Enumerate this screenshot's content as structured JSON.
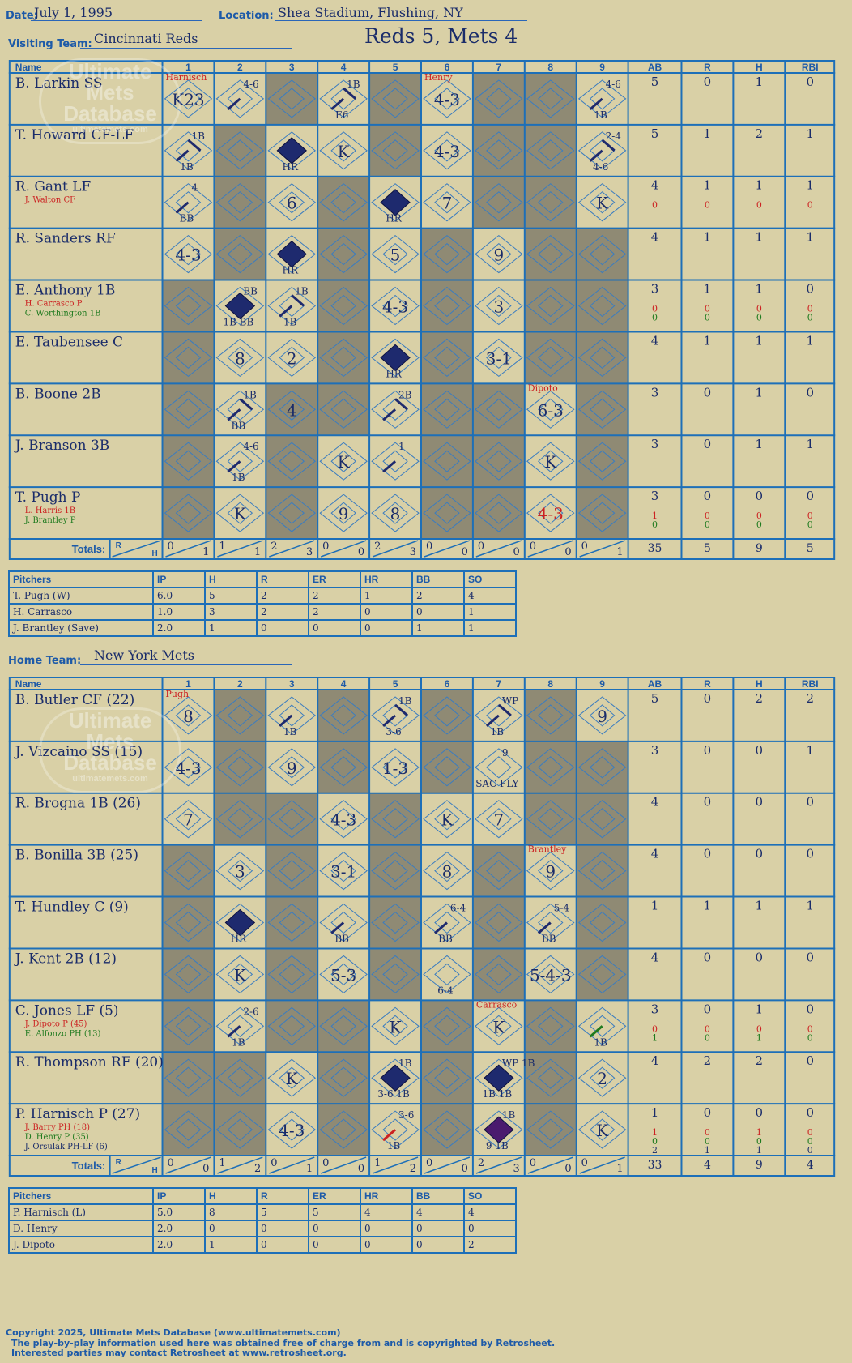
{
  "header": {
    "date_label": "Date:",
    "date": "July 1, 1995",
    "location_label": "Location:",
    "location": "Shea Stadium, Flushing, NY",
    "title": "Reds 5, Mets 4",
    "visiting_label": "Visiting Team:",
    "visiting_team": "Cincinnati Reds",
    "home_label": "Home Team:",
    "home_team": "New York Mets"
  },
  "columns": {
    "name": "Name",
    "innings": [
      "1",
      "2",
      "3",
      "4",
      "5",
      "6",
      "7",
      "8",
      "9"
    ],
    "stats": [
      "AB",
      "R",
      "H",
      "RBI"
    ],
    "totals_label": "Totals:",
    "totals_r": "R",
    "totals_h": "H"
  },
  "watermark": {
    "line1": "Ultimate",
    "line2": "Mets",
    "line3": "Database",
    "url": "ultimatemets.com"
  },
  "colors": {
    "background": "#d9d0a6",
    "grid": "#1d6fb8",
    "ink": "#1a2c6a",
    "shade": "#8f8a74",
    "sub_red": "#cc2222",
    "sub_green": "#1e7a1e",
    "run_navy": "#1e2a6e",
    "run_purple": "#4a1a6e"
  },
  "visitors": {
    "rows": [
      {
        "name": "B. Larkin SS",
        "subs": [],
        "stats": [
          [
            "5",
            "0",
            "1",
            "0"
          ]
        ],
        "cells": {
          "1": {
            "t": "K23",
            "note": "Harnisch"
          },
          "2": {
            "t": "4-6",
            "bases": 1
          },
          "4": {
            "t": "1B",
            "b2": "E6",
            "bases": 2
          },
          "6": {
            "t": "4-3",
            "note": "Henry"
          },
          "9": {
            "t": "4-6",
            "b2": "1B",
            "bases": 1
          }
        }
      },
      {
        "name": "T. Howard CF-LF",
        "subs": [],
        "stats": [
          [
            "5",
            "1",
            "2",
            "1"
          ]
        ],
        "cells": {
          "1": {
            "t": "1B",
            "b2": "1B",
            "bases": 2
          },
          "3": {
            "run": 1,
            "b2": "HR"
          },
          "4": {
            "t": "K"
          },
          "6": {
            "t": "4-3"
          },
          "9": {
            "t": "2-4",
            "b2": "4-6",
            "bases": 2
          }
        }
      },
      {
        "name": "R. Gant LF",
        "subs": [
          {
            "n": "J. Walton CF",
            "c": "r"
          }
        ],
        "stats": [
          [
            "4",
            "1",
            "1",
            "1"
          ],
          [
            "0",
            "0",
            "0",
            "0"
          ]
        ],
        "cells": {
          "1": {
            "t": "4",
            "b2": "BB",
            "bases": 1
          },
          "3": {
            "t": "6"
          },
          "5": {
            "run": 1,
            "b2": "HR"
          },
          "6": {
            "t": "7"
          },
          "9": {
            "t": "K"
          }
        }
      },
      {
        "name": "R. Sanders RF",
        "subs": [],
        "stats": [
          [
            "4",
            "1",
            "1",
            "1"
          ]
        ],
        "cells": {
          "1": {
            "t": "4-3"
          },
          "3": {
            "run": 1,
            "b2": "HR"
          },
          "5": {
            "t": "5"
          },
          "7": {
            "t": "9"
          }
        }
      },
      {
        "name": "E. Anthony 1B",
        "subs": [
          {
            "n": "H. Carrasco P",
            "c": "r"
          },
          {
            "n": "C. Worthington 1B",
            "c": "g"
          }
        ],
        "stats": [
          [
            "3",
            "1",
            "1",
            "0"
          ],
          [
            "0",
            "0",
            "0",
            "0"
          ],
          [
            "0",
            "0",
            "0",
            "0"
          ]
        ],
        "cells": {
          "2": {
            "run": 1,
            "t": "BB",
            "b2": "1B BB"
          },
          "3": {
            "t": "1B",
            "b2": "1B",
            "bases": 2
          },
          "5": {
            "t": "4-3"
          },
          "7": {
            "t": "3"
          }
        }
      },
      {
        "name": "E. Taubensee C",
        "subs": [],
        "stats": [
          [
            "4",
            "1",
            "1",
            "1"
          ]
        ],
        "cells": {
          "2": {
            "t": "8"
          },
          "3": {
            "t": "2"
          },
          "5": {
            "run": 1,
            "b2": "HR"
          },
          "7": {
            "t": "3-1"
          }
        }
      },
      {
        "name": "B. Boone 2B",
        "subs": [],
        "stats": [
          [
            "3",
            "0",
            "1",
            "0"
          ]
        ],
        "cells": {
          "2": {
            "t": "1B",
            "b2": "BB",
            "bases": 2
          },
          "3": {
            "t": "4"
          },
          "5": {
            "t": "2B",
            "bases": 2
          },
          "8": {
            "t": "6-3",
            "note": "Dipoto"
          }
        }
      },
      {
        "name": "J. Branson 3B",
        "subs": [],
        "stats": [
          [
            "3",
            "0",
            "1",
            "1"
          ]
        ],
        "cells": {
          "2": {
            "t": "4-6",
            "b2": "1B",
            "bases": 1
          },
          "4": {
            "t": "K"
          },
          "5": {
            "t": "1",
            "bases": 1
          },
          "8": {
            "t": "K"
          }
        }
      },
      {
        "name": "T. Pugh P",
        "subs": [
          {
            "n": "L. Harris 1B",
            "c": "r"
          },
          {
            "n": "J. Brantley P",
            "c": "g"
          }
        ],
        "stats": [
          [
            "3",
            "0",
            "0",
            "0"
          ],
          [
            "1",
            "0",
            "0",
            "0"
          ],
          [
            "0",
            "0",
            "0",
            "0"
          ]
        ],
        "cells": {
          "2": {
            "t": "K"
          },
          "4": {
            "t": "9"
          },
          "5": {
            "t": "8"
          },
          "8": {
            "t": "4-3",
            "red": 1
          }
        }
      }
    ],
    "shade": [
      [
        false,
        false,
        true,
        false,
        true,
        false,
        true,
        true,
        false
      ],
      [
        false,
        true,
        false,
        false,
        true,
        false,
        true,
        true,
        false
      ],
      [
        false,
        true,
        false,
        true,
        false,
        false,
        true,
        true,
        false
      ],
      [
        false,
        true,
        false,
        true,
        false,
        true,
        false,
        true,
        true
      ],
      [
        true,
        false,
        false,
        true,
        false,
        true,
        false,
        true,
        true
      ],
      [
        true,
        false,
        false,
        true,
        false,
        true,
        false,
        true,
        true
      ],
      [
        true,
        false,
        true,
        true,
        false,
        true,
        true,
        false,
        true
      ],
      [
        true,
        false,
        true,
        false,
        false,
        true,
        true,
        false,
        true
      ],
      [
        true,
        false,
        true,
        false,
        false,
        true,
        true,
        false,
        true
      ]
    ],
    "totals": [
      [
        "0",
        "1"
      ],
      [
        "1",
        "1"
      ],
      [
        "2",
        "3"
      ],
      [
        "0",
        "0"
      ],
      [
        "2",
        "3"
      ],
      [
        "0",
        "0"
      ],
      [
        "0",
        "0"
      ],
      [
        "0",
        "0"
      ],
      [
        "0",
        "1"
      ]
    ],
    "stat_totals": [
      "35",
      "5",
      "9",
      "5"
    ],
    "pitchers": {
      "headers": [
        "Pitchers",
        "IP",
        "H",
        "R",
        "ER",
        "HR",
        "BB",
        "SO"
      ],
      "rows": [
        [
          "T. Pugh (W)",
          "6.0",
          "5",
          "2",
          "2",
          "1",
          "2",
          "4"
        ],
        [
          "H. Carrasco",
          "1.0",
          "3",
          "2",
          "2",
          "0",
          "0",
          "1"
        ],
        [
          "J. Brantley (Save)",
          "2.0",
          "1",
          "0",
          "0",
          "0",
          "1",
          "1"
        ]
      ]
    }
  },
  "home": {
    "rows": [
      {
        "name": "B. Butler CF (22)",
        "subs": [],
        "stats": [
          [
            "5",
            "0",
            "2",
            "2"
          ]
        ],
        "cells": {
          "1": {
            "t": "8",
            "note": "Pugh"
          },
          "3": {
            "b2": "1B",
            "bases": 1
          },
          "5": {
            "t": "1B",
            "b2": "3-6",
            "bases": 2
          },
          "7": {
            "t": "WP",
            "b2": "1B",
            "bases": 2
          },
          "9": {
            "t": "9"
          }
        }
      },
      {
        "name": "J. Vizcaino SS (15)",
        "subs": [],
        "stats": [
          [
            "3",
            "0",
            "0",
            "1"
          ]
        ],
        "cells": {
          "1": {
            "t": "4-3"
          },
          "3": {
            "t": "9"
          },
          "5": {
            "t": "1-3"
          },
          "7": {
            "t": "9",
            "b2": "SAC FLY"
          }
        }
      },
      {
        "name": "R. Brogna 1B (26)",
        "subs": [],
        "stats": [
          [
            "4",
            "0",
            "0",
            "0"
          ]
        ],
        "cells": {
          "1": {
            "t": "7"
          },
          "4": {
            "t": "4-3"
          },
          "6": {
            "t": "K"
          },
          "7": {
            "t": "7"
          }
        }
      },
      {
        "name": "B. Bonilla 3B (25)",
        "subs": [],
        "stats": [
          [
            "4",
            "0",
            "0",
            "0"
          ]
        ],
        "cells": {
          "2": {
            "t": "3"
          },
          "4": {
            "t": "3-1"
          },
          "6": {
            "t": "8"
          },
          "8": {
            "t": "9",
            "note": "Brantley"
          }
        }
      },
      {
        "name": "T. Hundley C (9)",
        "subs": [],
        "stats": [
          [
            "1",
            "1",
            "1",
            "1"
          ]
        ],
        "cells": {
          "2": {
            "run": 1,
            "b2": "HR"
          },
          "4": {
            "b2": "BB",
            "bases": 1
          },
          "6": {
            "t": "6-4",
            "b2": "BB",
            "bases": 1
          },
          "8": {
            "t": "5-4",
            "b2": "BB",
            "bases": 1
          }
        }
      },
      {
        "name": "J. Kent 2B (12)",
        "subs": [],
        "stats": [
          [
            "4",
            "0",
            "0",
            "0"
          ]
        ],
        "cells": {
          "2": {
            "t": "K"
          },
          "4": {
            "t": "5-3"
          },
          "6": {
            "b2": "6-4"
          },
          "8": {
            "t": "5-4-3"
          }
        }
      },
      {
        "name": "C. Jones LF (5)",
        "subs": [
          {
            "n": "J. Dipoto P (45)",
            "c": "r"
          },
          {
            "n": "E. Alfonzo PH (13)",
            "c": "g"
          }
        ],
        "stats": [
          [
            "3",
            "0",
            "1",
            "0"
          ],
          [
            "0",
            "0",
            "0",
            "0"
          ],
          [
            "1",
            "0",
            "1",
            "0"
          ]
        ],
        "cells": {
          "2": {
            "t": "2-6",
            "b2": "1B",
            "bases": 1
          },
          "5": {
            "t": "K"
          },
          "7": {
            "t": "K",
            "note": "Carrasco"
          },
          "9": {
            "b2": "1B",
            "bases": 1,
            "green": 1
          }
        }
      },
      {
        "name": "R. Thompson RF (20)",
        "subs": [],
        "stats": [
          [
            "4",
            "2",
            "2",
            "0"
          ]
        ],
        "cells": {
          "3": {
            "t": "K"
          },
          "5": {
            "run": 1,
            "t": "1B",
            "b2": "3-6 1B"
          },
          "7": {
            "run": 1,
            "t": "WP 1B",
            "b2": "1B 1B"
          },
          "9": {
            "t": "2"
          }
        }
      },
      {
        "name": "P. Harnisch P (27)",
        "subs": [
          {
            "n": "J. Barry PH (18)",
            "c": "r"
          },
          {
            "n": "D. Henry P (35)",
            "c": "g"
          },
          {
            "n": "J. Orsulak PH-LF (6)",
            "c": "b"
          }
        ],
        "stats": [
          [
            "1",
            "0",
            "0",
            "0"
          ],
          [
            "1",
            "0",
            "1",
            "0"
          ],
          [
            "0",
            "0",
            "0",
            "0"
          ],
          [
            "2",
            "1",
            "1",
            "0"
          ]
        ],
        "cells": {
          "3": {
            "t": "4-3"
          },
          "5": {
            "t": "3-6",
            "b2": "1B",
            "bases": 1,
            "redline": 1
          },
          "7": {
            "run": 2,
            "t": "1B",
            "b2": "9 1B"
          },
          "9": {
            "t": "K"
          }
        }
      }
    ],
    "shade": [
      [
        false,
        true,
        false,
        true,
        false,
        true,
        false,
        true,
        false
      ],
      [
        false,
        true,
        false,
        true,
        false,
        true,
        false,
        true,
        true
      ],
      [
        false,
        true,
        true,
        false,
        true,
        false,
        false,
        true,
        true
      ],
      [
        true,
        false,
        true,
        false,
        true,
        false,
        true,
        false,
        true
      ],
      [
        true,
        false,
        true,
        false,
        true,
        false,
        true,
        false,
        true
      ],
      [
        true,
        false,
        true,
        false,
        true,
        false,
        true,
        false,
        true
      ],
      [
        true,
        false,
        true,
        true,
        false,
        true,
        false,
        true,
        false
      ],
      [
        true,
        true,
        false,
        true,
        false,
        true,
        false,
        true,
        false
      ],
      [
        true,
        true,
        false,
        true,
        false,
        true,
        false,
        true,
        false
      ]
    ],
    "totals": [
      [
        "0",
        "0"
      ],
      [
        "1",
        "2"
      ],
      [
        "0",
        "1"
      ],
      [
        "0",
        "0"
      ],
      [
        "1",
        "2"
      ],
      [
        "0",
        "0"
      ],
      [
        "2",
        "3"
      ],
      [
        "0",
        "0"
      ],
      [
        "0",
        "1"
      ]
    ],
    "stat_totals": [
      "33",
      "4",
      "9",
      "4"
    ],
    "pitchers": {
      "headers": [
        "Pitchers",
        "IP",
        "H",
        "R",
        "ER",
        "HR",
        "BB",
        "SO"
      ],
      "rows": [
        [
          "P. Harnisch (L)",
          "5.0",
          "8",
          "5",
          "5",
          "4",
          "4",
          "4"
        ],
        [
          "D. Henry",
          "2.0",
          "0",
          "0",
          "0",
          "0",
          "0",
          "0"
        ],
        [
          "J. Dipoto",
          "2.0",
          "1",
          "0",
          "0",
          "0",
          "0",
          "2"
        ]
      ]
    }
  },
  "footer": {
    "line1": "Copyright 2025, Ultimate Mets Database (www.ultimatemets.com)",
    "line2": "The play-by-play information used here was obtained free of charge from and is copyrighted by Retrosheet.",
    "line3": "Interested parties may contact Retrosheet at www.retrosheet.org."
  }
}
